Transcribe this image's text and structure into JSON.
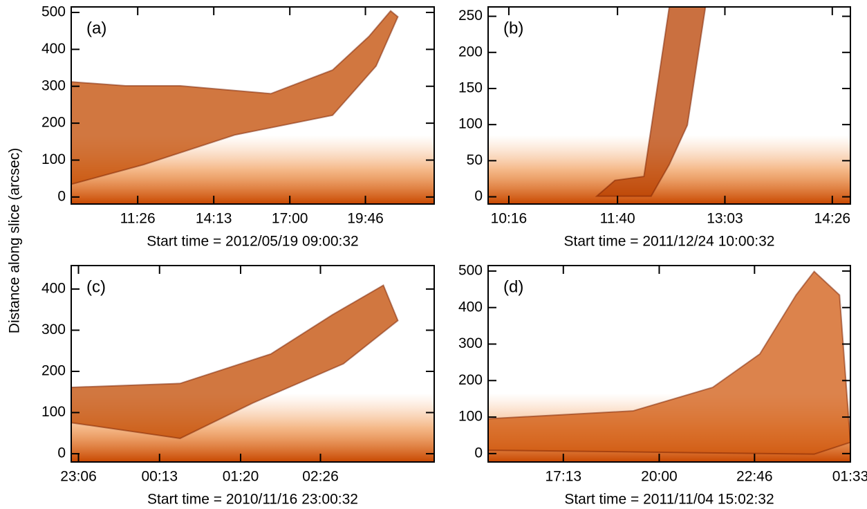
{
  "y_label": "Distance along slice (arcsec)",
  "chart_data": [
    {
      "type": "heatmap",
      "panel_label": "(a)",
      "x_label": "Start time = 2012/05/19 09:00:32",
      "color": "#c24a00",
      "xlim": [
        0,
        797
      ],
      "xticks": [
        {
          "value": 146,
          "label": "11:26"
        },
        {
          "value": 313,
          "label": "14:13"
        },
        {
          "value": 480,
          "label": "17:00"
        },
        {
          "value": 646,
          "label": "19:46"
        }
      ],
      "ylim": [
        -19,
        515
      ],
      "yticks": [
        0,
        100,
        200,
        300,
        400,
        500
      ]
    },
    {
      "type": "heatmap",
      "panel_label": "(b)",
      "x_label": "Start time = 2011/12/24 10:00:32",
      "color": "#b84000",
      "xlim": [
        0,
        280
      ],
      "xticks": [
        {
          "value": 16,
          "label": "10:16"
        },
        {
          "value": 100,
          "label": "11:40"
        },
        {
          "value": 183,
          "label": "13:03"
        },
        {
          "value": 266,
          "label": "14:26"
        }
      ],
      "ylim": [
        -10,
        263
      ],
      "yticks": [
        0,
        50,
        100,
        150,
        200,
        250
      ]
    },
    {
      "type": "heatmap",
      "panel_label": "(c)",
      "x_label": "Start time = 2010/11/16 23:00:32",
      "color": "#c24a00",
      "xlim": [
        0,
        300
      ],
      "xticks": [
        {
          "value": 6,
          "label": "23:06"
        },
        {
          "value": 73,
          "label": "00:13"
        },
        {
          "value": 140,
          "label": "01:20"
        },
        {
          "value": 206,
          "label": "02:26"
        }
      ],
      "ylim": [
        -20,
        457
      ],
      "yticks": [
        0,
        100,
        200,
        300,
        400
      ]
    },
    {
      "type": "heatmap",
      "panel_label": "(d)",
      "x_label": "Start time = 2011/11/04 15:02:32",
      "color": "#d05a10",
      "xlim": [
        0,
        631
      ],
      "xticks": [
        {
          "value": 131,
          "label": "17:13"
        },
        {
          "value": 298,
          "label": "20:00"
        },
        {
          "value": 464,
          "label": "22:46"
        },
        {
          "value": 631,
          "label": "01:33"
        }
      ],
      "ylim": [
        -23,
        515
      ],
      "yticks": [
        0,
        100,
        200,
        300,
        400,
        500
      ]
    }
  ]
}
